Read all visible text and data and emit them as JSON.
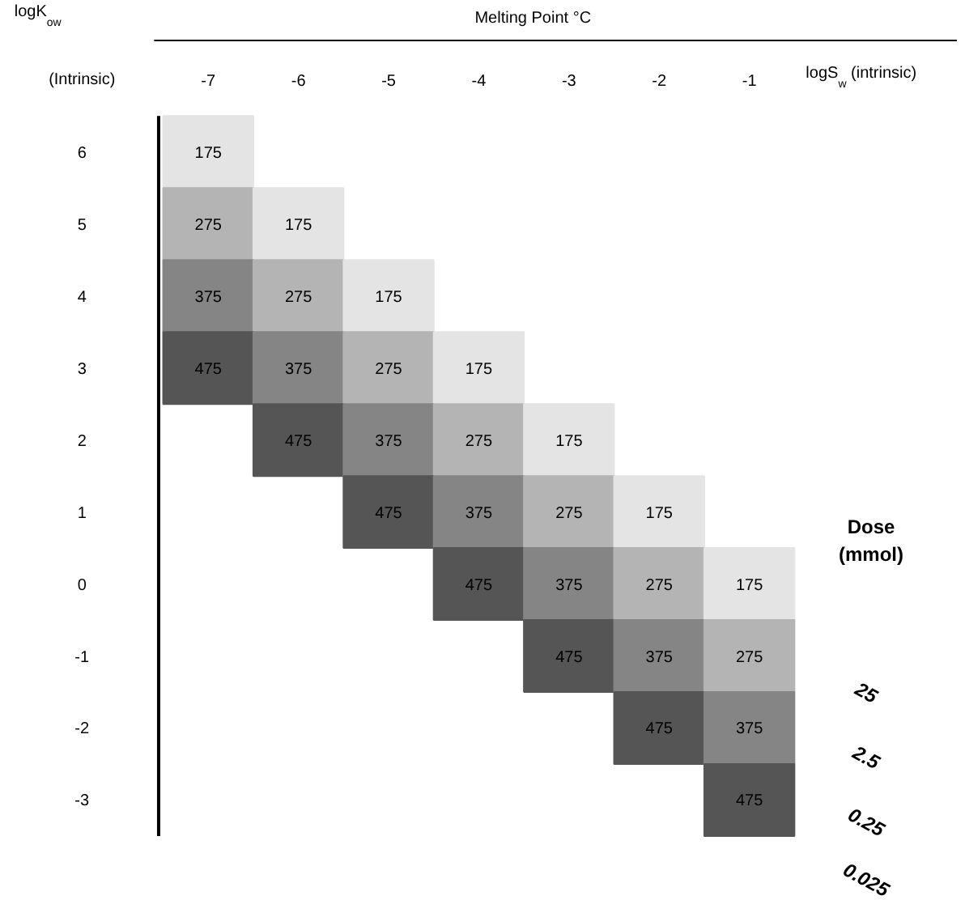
{
  "chart_data": {
    "type": "heatmap",
    "title": "Melting Point °C",
    "xlabel": "logS$_{w}$ (intrinsic)",
    "ylabel": "logK$_{ow}$",
    "categories": [
      "-7",
      "-6",
      "-5",
      "-4",
      "-3",
      "-2",
      "-1"
    ],
    "y_categories": [
      "6",
      "5",
      "4",
      "3",
      "2",
      "1",
      "0",
      "-1",
      "-2",
      "-3"
    ],
    "cells": [
      [
        175,
        null,
        null,
        null,
        null,
        null,
        null
      ],
      [
        275,
        175,
        null,
        null,
        null,
        null,
        null
      ],
      [
        375,
        275,
        175,
        null,
        null,
        null,
        null
      ],
      [
        475,
        375,
        275,
        175,
        null,
        null,
        null
      ],
      [
        null,
        475,
        375,
        275,
        175,
        null,
        null
      ],
      [
        null,
        null,
        475,
        375,
        275,
        175,
        null
      ],
      [
        null,
        null,
        null,
        475,
        375,
        275,
        175
      ],
      [
        null,
        null,
        null,
        null,
        475,
        375,
        275
      ],
      [
        null,
        null,
        null,
        null,
        null,
        475,
        375
      ],
      [
        null,
        null,
        null,
        null,
        null,
        null,
        475
      ]
    ],
    "colors": [
      "#e4e4e4",
      "#555555"
    ],
    "data_labels": true,
    "annotations": [
      "(Intrinsic)",
      "Dose (mmol)",
      "25",
      "2.5",
      "0.25",
      "0.025"
    ]
  }
}
